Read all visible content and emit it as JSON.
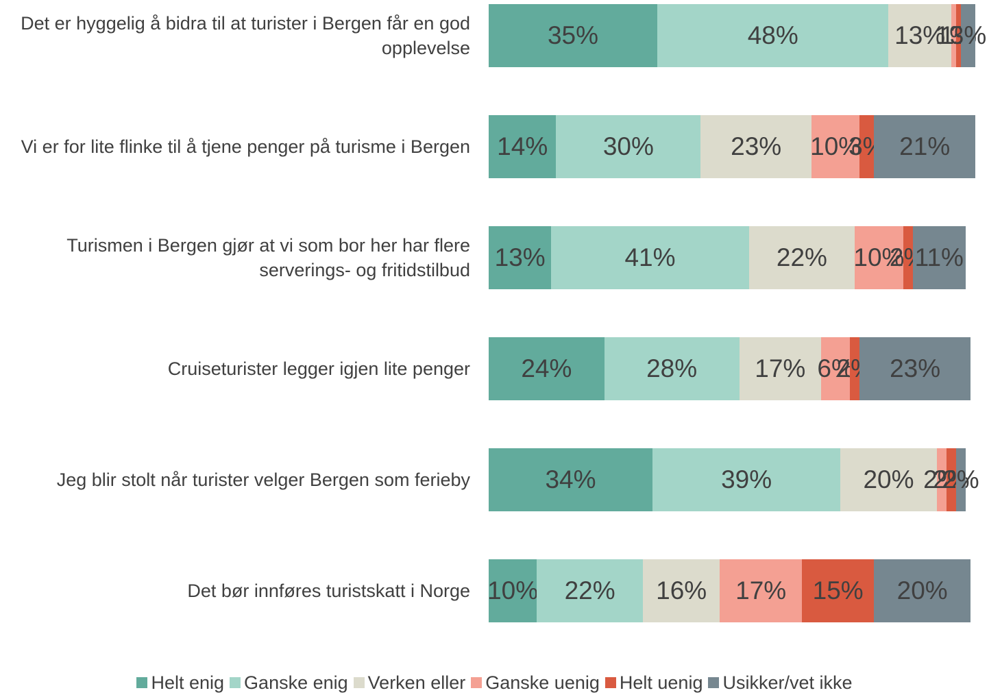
{
  "chart_data": {
    "type": "stacked-bar-horizontal",
    "categories": [
      "Det er hyggelig å bidra til at turister i Bergen får en god opplevelse",
      "Vi er for lite flinke til å tjene penger på turisme i Bergen",
      "Turismen i Bergen gjør at vi som bor her har flere serverings- og fritidstilbud",
      "Cruiseturister legger igjen lite penger",
      "Jeg blir stolt når turister velger Bergen som ferieby",
      "Det bør innføres turistskatt i Norge"
    ],
    "xlim": [
      0,
      100
    ],
    "legend": "bottom",
    "series": [
      {
        "name": "Helt enig",
        "color": "#62ab9c",
        "values": [
          35,
          14,
          13,
          24,
          34,
          10
        ],
        "value_labels": [
          "35%",
          "14%",
          "13%",
          "24%",
          "34%",
          "10%"
        ]
      },
      {
        "name": "Ganske enig",
        "color": "#a3d5c8",
        "values": [
          48,
          30,
          41,
          28,
          39,
          22
        ],
        "value_labels": [
          "48%",
          "30%",
          "41%",
          "28%",
          "39%",
          "22%"
        ]
      },
      {
        "name": "Verken eller",
        "color": "#dcdbcc",
        "values": [
          13,
          23,
          22,
          17,
          20,
          16
        ],
        "value_labels": [
          "13%",
          "23%",
          "22%",
          "17%",
          "20%",
          "16%"
        ]
      },
      {
        "name": "Ganske uenig",
        "color": "#f4a093",
        "values": [
          1,
          10,
          10,
          6,
          2,
          17
        ],
        "value_labels": [
          "1%",
          "10%",
          "10%",
          "6%",
          "2%",
          "17%"
        ]
      },
      {
        "name": "Helt uenig",
        "color": "#d95a40",
        "values": [
          1,
          3,
          2,
          2,
          2,
          15
        ],
        "value_labels": [
          "1%",
          "3%",
          "2%",
          "2%",
          "2%",
          "15%"
        ]
      },
      {
        "name": "Usikker/vet ikke",
        "color": "#768790",
        "values": [
          3,
          21,
          11,
          23,
          2,
          20
        ],
        "value_labels": [
          "3%",
          "21%",
          "11%",
          "23%",
          "2%",
          "20%"
        ]
      }
    ]
  }
}
